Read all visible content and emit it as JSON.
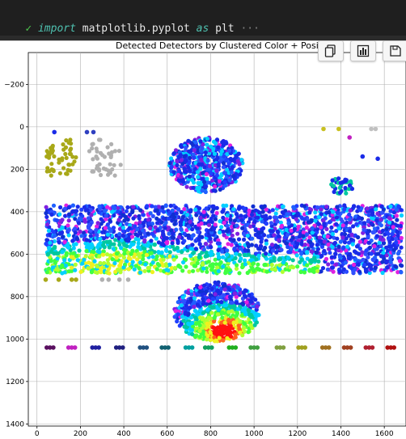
{
  "code_line": {
    "check": "✓",
    "kw_import": "import",
    "module": " matplotlib.pyplot ",
    "kw_as": "as",
    "alias": " plt ",
    "ellipsis": "···"
  },
  "figure": {
    "title": "Detected Detectors by Clustered Color + Position",
    "toolbar": [
      {
        "name": "copy-button",
        "icon": "copy-icon"
      },
      {
        "name": "chart-button",
        "icon": "bar-chart-icon"
      },
      {
        "name": "save-button",
        "icon": "save-icon"
      }
    ]
  },
  "chart_data": {
    "type": "scatter",
    "title": "Detected Detectors by Clustered Color + Position",
    "xlabel": "",
    "ylabel": "",
    "xlim": [
      -40,
      1700
    ],
    "ylim": [
      1410,
      -350
    ],
    "y_inverted": true,
    "grid": true,
    "xticks": [
      0,
      200,
      400,
      600,
      800,
      1000,
      1200,
      1400,
      1600
    ],
    "yticks": [
      -200,
      0,
      200,
      400,
      600,
      800,
      1000,
      1200,
      1400
    ],
    "ytick_labels": [
      "−200",
      "0",
      "200",
      "400",
      "600",
      "800",
      "1000",
      "1200",
      "1400"
    ],
    "colors": {
      "blue": "#1a2be8",
      "royal": "#2040ff",
      "cyan": "#00d0ff",
      "teal": "#00c8a0",
      "green": "#40ff40",
      "lime": "#b0ff30",
      "yellow": "#f0f020",
      "magenta": "#e020e0",
      "purple": "#8020e0",
      "red": "#ff1010",
      "olive": "#a0a020",
      "gray": "#b0b0b0"
    },
    "clusters": [
      {
        "name": "olive-column-1",
        "color": "#a8a818",
        "x": [
          40,
          80
        ],
        "y": [
          60,
          230
        ],
        "n": 22
      },
      {
        "name": "olive-column-2",
        "color": "#a8a818",
        "x": [
          100,
          180
        ],
        "y": [
          60,
          230
        ],
        "n": 30
      },
      {
        "name": "gray-block",
        "color": "#b0b0b0",
        "x": [
          240,
          390
        ],
        "y": [
          60,
          230
        ],
        "n": 40
      },
      {
        "name": "top-oval",
        "shape": "ellipse",
        "cx": 780,
        "cy": 180,
        "rx": 170,
        "ry": 130,
        "n": 520
      },
      {
        "name": "main-band",
        "shape": "rect",
        "x": [
          40,
          1680
        ],
        "y": [
          370,
          690
        ],
        "n": 2400
      },
      {
        "name": "bottom-oval",
        "shape": "ellipse",
        "cx": 830,
        "cy": 870,
        "rx": 200,
        "ry": 140,
        "n": 650
      },
      {
        "name": "small-oval",
        "shape": "ellipse",
        "cx": 1400,
        "cy": 280,
        "rx": 60,
        "ry": 40,
        "n": 40
      }
    ],
    "bottom_row": {
      "y": 1040,
      "x": [
        60,
        160,
        270,
        380,
        490,
        590,
        700,
        790,
        900,
        1000,
        1120,
        1220,
        1330,
        1430,
        1530,
        1630
      ],
      "colors": [
        "#5a1060",
        "#c020c0",
        "#2020a0",
        "#202080",
        "#205080",
        "#106070",
        "#00a0a0",
        "#10a060",
        "#20b020",
        "#40a040",
        "#80a040",
        "#a0a020",
        "#a07020",
        "#a04020",
        "#b02030",
        "#b01010"
      ]
    },
    "row_720": {
      "y": 720,
      "points": [
        {
          "x": 40,
          "c": "#a8a818"
        },
        {
          "x": 100,
          "c": "#a8a818"
        },
        {
          "x": 160,
          "c": "#a8a818"
        },
        {
          "x": 180,
          "c": "#a8a818"
        },
        {
          "x": 300,
          "c": "#b0b0b0"
        },
        {
          "x": 330,
          "c": "#b0b0b0"
        },
        {
          "x": 380,
          "c": "#b0b0b0"
        },
        {
          "x": 420,
          "c": "#b0b0b0"
        }
      ]
    },
    "extra_points": [
      {
        "x": 1320,
        "y": 10,
        "c": "#c8c020"
      },
      {
        "x": 1390,
        "y": 10,
        "c": "#c8c020"
      },
      {
        "x": 1540,
        "y": 10,
        "c": "#c0c0c0"
      },
      {
        "x": 1560,
        "y": 10,
        "c": "#c0c0c0"
      },
      {
        "x": 1440,
        "y": 50,
        "c": "#c020c0"
      },
      {
        "x": 1570,
        "y": 150,
        "c": "#1a2be8"
      },
      {
        "x": 1500,
        "y": 140,
        "c": "#1a2be8"
      },
      {
        "x": 80,
        "y": 25,
        "c": "#1a2be8"
      },
      {
        "x": 230,
        "y": 25,
        "c": "#3040c0"
      },
      {
        "x": 260,
        "y": 25,
        "c": "#3040c0"
      }
    ]
  }
}
